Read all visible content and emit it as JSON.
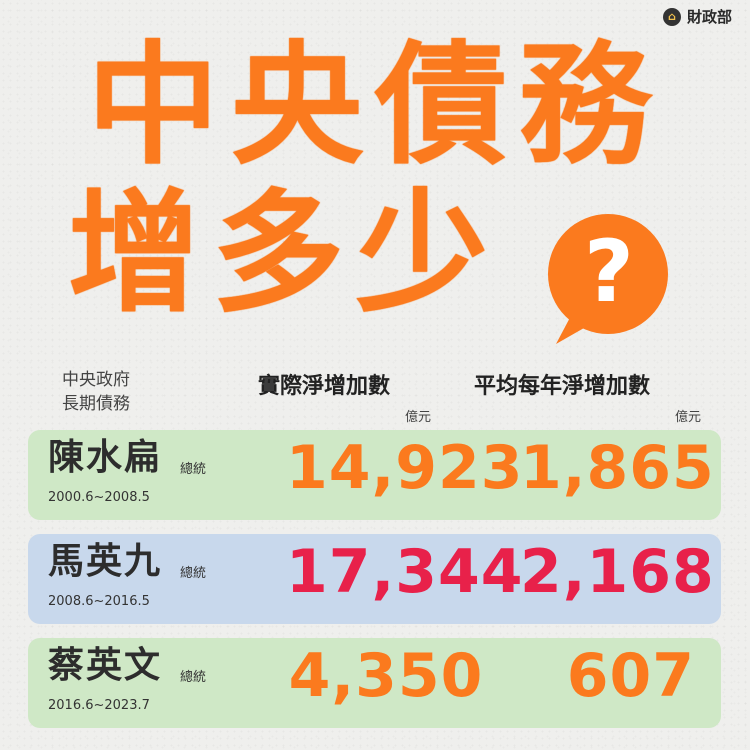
{
  "logo": {
    "org": "財政部",
    "icon": "building-icon"
  },
  "headline": {
    "line1": "中央債務",
    "line2": "增多少"
  },
  "question_bubble": {
    "symbol": "?",
    "icon": "question-bubble-icon"
  },
  "table": {
    "left_header_line1": "中央政府",
    "left_header_line2": "長期債務",
    "col1_header": "實際淨增加數",
    "col1_unit": "億元",
    "col2_header": "平均每年淨增加數",
    "col2_unit": "億元",
    "rows": [
      {
        "name": "陳水扁",
        "title": "總統",
        "term": "2000.6~2008.5",
        "actual_increase": "14,923",
        "annual_increase": "1,865",
        "color": "green"
      },
      {
        "name": "馬英九",
        "title": "總統",
        "term": "2008.6~2016.5",
        "actual_increase": "17,344",
        "annual_increase": "2,168",
        "color": "blue"
      },
      {
        "name": "蔡英文",
        "title": "總統",
        "term": "2016.6~2023.7",
        "actual_increase": "4,350",
        "annual_increase": "607",
        "color": "green"
      }
    ]
  },
  "colors": {
    "orange": "#fb7a1e",
    "pink": "#e8214a",
    "green_row": "#cfe8c6",
    "blue_row": "#c8d8ec"
  }
}
